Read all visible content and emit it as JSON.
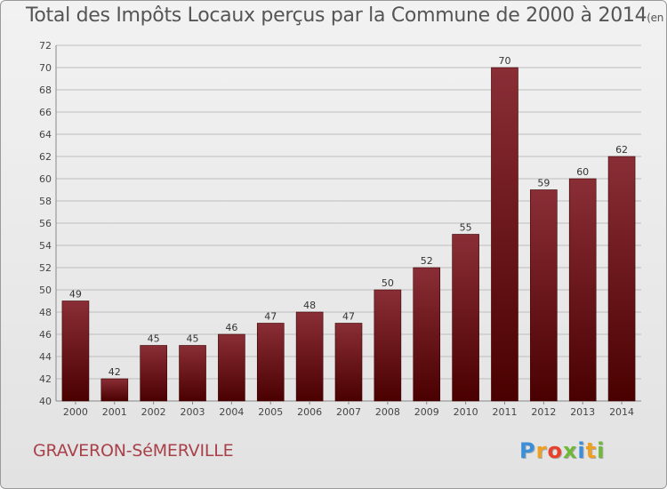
{
  "title": "Total des Impôts Locaux perçus par la Commune de 2000 à 2014",
  "title_units": "(en milliers d'€)",
  "commune": "GRAVERON-SéMERVILLE",
  "logo": {
    "letters": [
      "P",
      "r",
      "o",
      "x",
      "i",
      "t",
      "i"
    ],
    "colors": [
      "#3a8fd8",
      "#f0a020",
      "#e8402a",
      "#6fb83a",
      "#3a8fd8",
      "#f0a020",
      "#6fb83a"
    ]
  },
  "colors": {
    "bar_top": "#8a2e36",
    "bar_bottom": "#4a0000",
    "grid": "#bdbdbd",
    "commune": "#a8414a"
  },
  "chart_data": {
    "type": "bar",
    "categories": [
      "2000",
      "2001",
      "2002",
      "2003",
      "2004",
      "2005",
      "2006",
      "2007",
      "2008",
      "2009",
      "2010",
      "2011",
      "2012",
      "2013",
      "2014"
    ],
    "values": [
      49,
      42,
      45,
      45,
      46,
      47,
      48,
      47,
      50,
      52,
      55,
      70,
      59,
      60,
      62
    ],
    "ylim": [
      40,
      72
    ],
    "yticks": [
      40,
      42,
      44,
      46,
      48,
      50,
      52,
      54,
      56,
      58,
      60,
      62,
      64,
      66,
      68,
      70,
      72
    ],
    "grid": true,
    "data_labels": true
  }
}
